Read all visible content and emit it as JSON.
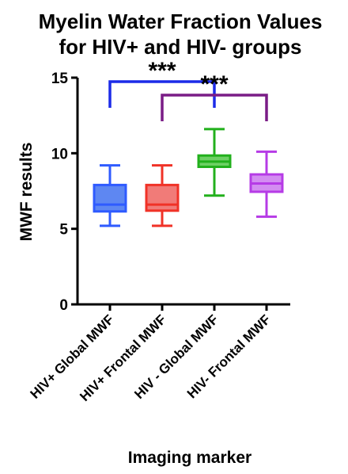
{
  "chart_data": {
    "type": "boxplot",
    "title_lines": [
      "Myelin Water Fraction Values",
      "for HIV+ and HIV- groups"
    ],
    "xlabel": "Imaging marker",
    "ylabel": "MWF results",
    "ylim": [
      0,
      15
    ],
    "yticks": [
      0,
      5,
      10,
      15
    ],
    "grid": false,
    "categories": [
      "HIV+ Global MWF",
      "HIV+ Frontal MWF",
      "HIV - Global MWF",
      "HIV- Frontal MWF"
    ],
    "boxes": [
      {
        "category": "HIV+ Global MWF",
        "min": 5.2,
        "q1": 6.15,
        "median": 6.6,
        "q3": 7.9,
        "max": 9.2,
        "color": "#2F5BFF",
        "fill": "#5E87F2"
      },
      {
        "category": "HIV+ Frontal MWF",
        "min": 5.2,
        "q1": 6.2,
        "median": 6.6,
        "q3": 7.9,
        "max": 9.2,
        "color": "#F03227",
        "fill": "#F17B78"
      },
      {
        "category": "HIV - Global MWF",
        "min": 7.2,
        "q1": 9.1,
        "median": 9.45,
        "q3": 9.85,
        "max": 11.6,
        "color": "#22B01C",
        "fill": "#6DD064"
      },
      {
        "category": "HIV- Frontal MWF",
        "min": 5.8,
        "q1": 7.45,
        "median": 8.0,
        "q3": 8.6,
        "max": 10.1,
        "color": "#B63BE6",
        "fill": "#D38DF1"
      }
    ],
    "significance": [
      {
        "from": "HIV+ Global MWF",
        "to": "HIV - Global MWF",
        "label": "***",
        "color": "#1C2BE8"
      },
      {
        "from": "HIV+ Frontal MWF",
        "to": "HIV- Frontal MWF",
        "label": "***",
        "color": "#7A1C86"
      }
    ]
  }
}
